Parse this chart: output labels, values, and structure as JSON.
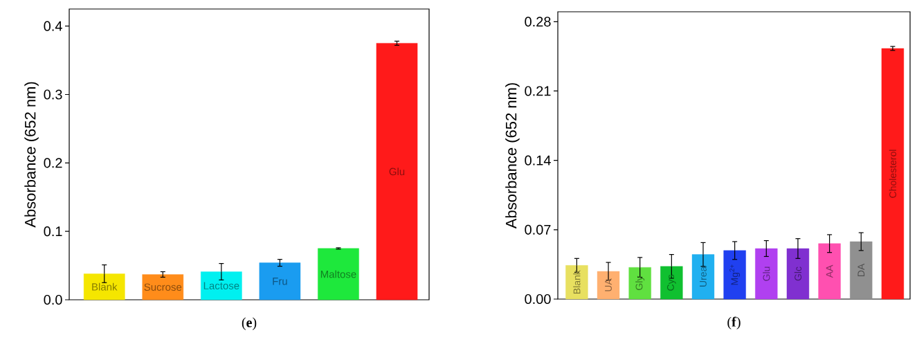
{
  "chart_data": [
    {
      "type": "bar",
      "title": "(**e**)",
      "ylabel": "Absorbance (652 nm)",
      "categories": [
        "Blank",
        "Sucrose",
        "Lactose",
        "Fru",
        "Maltose",
        "Glu"
      ],
      "values": [
        0.038,
        0.037,
        0.041,
        0.054,
        0.075,
        0.375
      ],
      "errors": [
        0.013,
        0.004,
        0.012,
        0.005,
        0.001,
        0.003
      ],
      "colors": [
        "#f5e600",
        "#ff8c1a",
        "#00f0f0",
        "#1a9cf0",
        "#1ee83c",
        "#ff1a1a"
      ],
      "ylim": [
        0,
        0.425
      ],
      "yticks": [
        {
          "value": 0,
          "label": "0.0"
        },
        {
          "value": 0.1,
          "label": "0.1"
        },
        {
          "value": 0.2,
          "label": "0.2"
        },
        {
          "value": 0.3,
          "label": "0.3"
        },
        {
          "value": 0.4,
          "label": "0.4"
        }
      ]
    },
    {
      "type": "bar",
      "title": "(**f**)",
      "ylabel": "Absorbance (652 nm)",
      "categories": [
        "Blank",
        "UA",
        "Gly",
        "Cys",
        "Urea",
        "Mg$^{2+}$",
        "Glu",
        "Glc",
        "AA",
        "DA",
        "Cholesterol"
      ],
      "values": [
        0.034,
        0.028,
        0.032,
        0.033,
        0.045,
        0.049,
        0.051,
        0.051,
        0.056,
        0.058,
        0.253
      ],
      "errors": [
        0.007,
        0.009,
        0.01,
        0.012,
        0.012,
        0.009,
        0.008,
        0.01,
        0.009,
        0.009,
        0.002
      ],
      "colors": [
        "#e8e060",
        "#ffb070",
        "#60e040",
        "#10c030",
        "#20b0f0",
        "#2040f0",
        "#b040f0",
        "#8030d0",
        "#ff50b0",
        "#909090",
        "#ff1a1a"
      ],
      "ylim": [
        0,
        0.29
      ],
      "yticks": [
        {
          "value": 0,
          "label": "0.00"
        },
        {
          "value": 0.07,
          "label": "0.07"
        },
        {
          "value": 0.14,
          "label": "0.14"
        },
        {
          "value": 0.21,
          "label": "0.21"
        },
        {
          "value": 0.28,
          "label": "0.28"
        }
      ]
    }
  ]
}
